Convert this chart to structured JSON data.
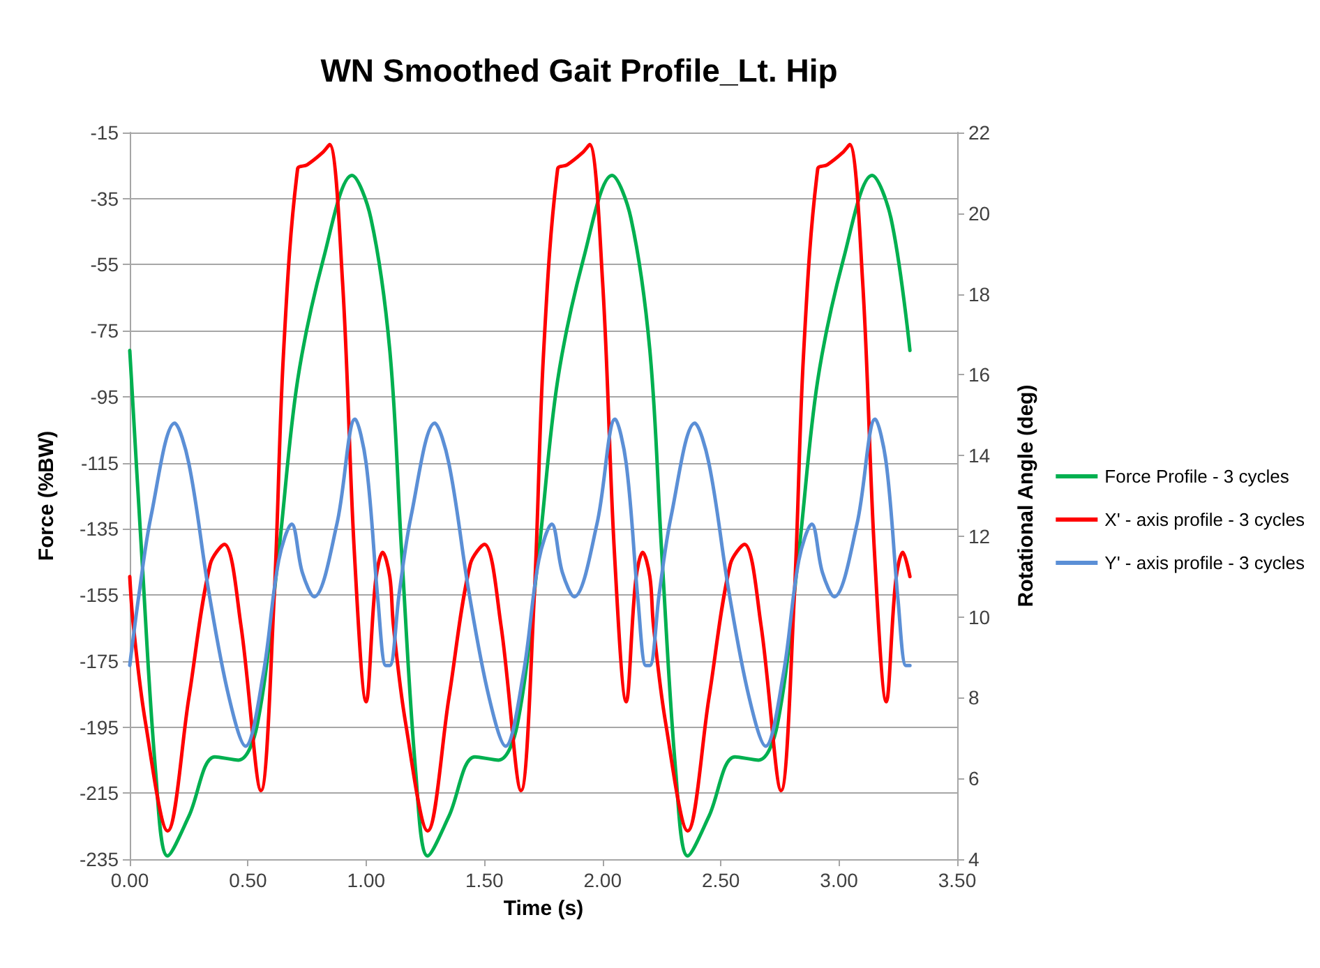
{
  "chart_data": {
    "type": "line",
    "title": "WN Smoothed Gait Profile_Lt. Hip",
    "xlabel": "Time (s)",
    "ylabel": "Force (%BW)",
    "y2label": "Rotational Angle (deg)",
    "xlim": [
      0,
      3.5
    ],
    "xticks": [
      {
        "value": 0,
        "label": "0.00"
      },
      {
        "value": 0.5,
        "label": "0.50"
      },
      {
        "value": 1,
        "label": "1.00"
      },
      {
        "value": 1.5,
        "label": "1.50"
      },
      {
        "value": 2,
        "label": "2.00"
      },
      {
        "value": 2.5,
        "label": "2.50"
      },
      {
        "value": 3,
        "label": "3.00"
      },
      {
        "value": 3.5,
        "label": "3.50"
      }
    ],
    "ylim": [
      -235,
      -15
    ],
    "yticks": [
      -235,
      -215,
      -195,
      -175,
      -155,
      -135,
      -115,
      -95,
      -75,
      -55,
      -35,
      -15
    ],
    "y2lim": [
      4,
      22
    ],
    "y2ticks": [
      4,
      6,
      8,
      10,
      12,
      14,
      16,
      18,
      20,
      22
    ],
    "grid": "y",
    "legend": "right",
    "marker": "none",
    "line_style": "solid",
    "series": [
      {
        "name": "Force Profile - 3 cycles",
        "color": "#00b050",
        "x": [
          0,
          0.05,
          0.11,
          0.16,
          0.25,
          0.36,
          0.46,
          0.54,
          0.63,
          0.71,
          0.82,
          0.94,
          1.02,
          1.1,
          1.15,
          1.21,
          1.26,
          1.35,
          1.46,
          1.56,
          1.64,
          1.73,
          1.81,
          1.92,
          2.04,
          2.12,
          2.2,
          2.25,
          2.31,
          2.36,
          2.45,
          2.56,
          2.66,
          2.74,
          2.83,
          2.91,
          3.02,
          3.14,
          3.22,
          3.3
        ],
        "values": [
          -81,
          -142,
          -209,
          -234,
          -222,
          -204,
          -205,
          -194,
          -142,
          -90,
          -53,
          -28,
          -41,
          -81,
          -142,
          -209,
          -234,
          -222,
          -204,
          -205,
          -194,
          -142,
          -90,
          -53,
          -28,
          -41,
          -81,
          -142,
          -209,
          -234,
          -222,
          -204,
          -205,
          -194,
          -142,
          -90,
          -53,
          -28,
          -41,
          -81
        ]
      },
      {
        "name": "X' - axis profile - 3 cycles",
        "color": "#ff0000",
        "axis": "y2",
        "x": [
          0,
          0.015,
          0.066,
          0.16,
          0.25,
          0.34,
          0.4,
          0.47,
          0.555,
          0.61,
          0.65,
          0.71,
          0.75,
          0.815,
          0.845,
          0.9,
          0.95,
          1.0,
          1.04,
          1.07,
          1.1,
          1.115,
          1.166,
          1.26,
          1.35,
          1.44,
          1.5,
          1.57,
          1.655,
          1.71,
          1.75,
          1.81,
          1.85,
          1.915,
          1.945,
          2.0,
          2.05,
          2.1,
          2.14,
          2.17,
          2.2,
          2.215,
          2.266,
          2.36,
          2.45,
          2.54,
          2.6,
          2.67,
          2.755,
          2.81,
          2.85,
          2.91,
          2.95,
          3.015,
          3.045,
          3.1,
          3.15,
          3.2,
          3.24,
          3.27,
          3.3
        ],
        "values": [
          11,
          9.8,
          7.4,
          4.7,
          8,
          11.3,
          11.8,
          9.8,
          5.7,
          10.4,
          16.5,
          21.1,
          21.2,
          21.5,
          21.7,
          18.3,
          11.6,
          7.9,
          10.9,
          11.6,
          11,
          9.8,
          7.4,
          4.7,
          8,
          11.3,
          11.8,
          9.8,
          5.7,
          10.4,
          16.5,
          21.1,
          21.2,
          21.5,
          21.7,
          18.3,
          11.6,
          7.9,
          10.9,
          11.6,
          11,
          9.8,
          7.4,
          4.7,
          8,
          11.3,
          11.8,
          9.8,
          5.7,
          10.4,
          16.5,
          21.1,
          21.2,
          21.5,
          21.7,
          18.3,
          11.6,
          7.9,
          10.9,
          11.6,
          11
        ]
      },
      {
        "name": "Y' - axis profile - 3 cycles",
        "color": "#5b8fd6",
        "axis": "y2",
        "x": [
          0,
          0.04,
          0.09,
          0.19,
          0.25,
          0.335,
          0.42,
          0.49,
          0.565,
          0.63,
          0.685,
          0.73,
          0.78,
          0.876,
          0.953,
          1.0,
          1.05,
          1.083,
          1.1,
          1.14,
          1.19,
          1.29,
          1.35,
          1.435,
          1.52,
          1.59,
          1.665,
          1.73,
          1.785,
          1.83,
          1.88,
          1.976,
          2.053,
          2.1,
          2.15,
          2.183,
          2.2,
          2.24,
          2.29,
          2.39,
          2.45,
          2.535,
          2.62,
          2.69,
          2.765,
          2.83,
          2.885,
          2.93,
          2.98,
          3.076,
          3.153,
          3.2,
          3.25,
          3.283,
          3.3
        ],
        "values": [
          8.8,
          10.6,
          12.5,
          14.8,
          13.8,
          10.6,
          8,
          6.8,
          8.6,
          11.4,
          12.3,
          11.1,
          10.5,
          12.3,
          14.9,
          13.8,
          10.4,
          8.8,
          8.8,
          10.6,
          12.5,
          14.8,
          13.8,
          10.6,
          8,
          6.8,
          8.6,
          11.4,
          12.3,
          11.1,
          10.5,
          12.3,
          14.9,
          13.8,
          10.4,
          8.8,
          8.8,
          10.6,
          12.5,
          14.8,
          13.8,
          10.6,
          8,
          6.8,
          8.6,
          11.4,
          12.3,
          11.1,
          10.5,
          12.3,
          14.9,
          13.8,
          10.4,
          8.8,
          8.8
        ]
      }
    ]
  }
}
